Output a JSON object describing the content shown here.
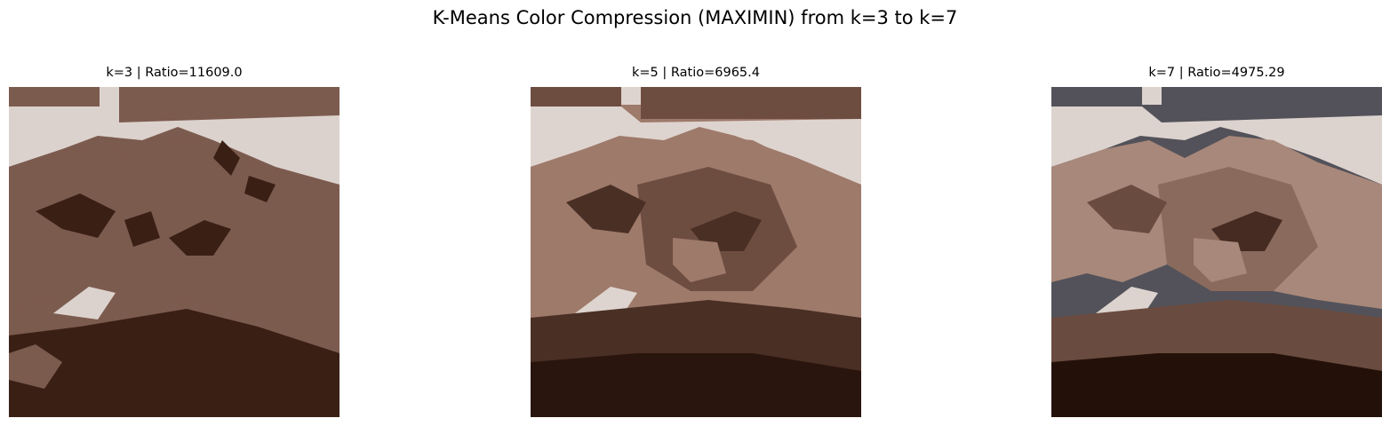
{
  "figure": {
    "title": "K-Means Color Compression (MAXIMIN) from k=3 to k=7"
  },
  "panels": [
    {
      "title": "k=3 | Ratio=11609.0",
      "k": 3,
      "palette": [
        "#dcd2cd",
        "#7c5b4f",
        "#3a1f15"
      ]
    },
    {
      "title": "k=5 | Ratio=6965.4",
      "k": 5,
      "palette": [
        "#ded4cf",
        "#9e7a6b",
        "#6e4d41",
        "#4a2f24",
        "#2a150e"
      ]
    },
    {
      "title": "k=7 | Ratio=4975.29",
      "k": 7,
      "palette": [
        "#ddd3ce",
        "#53525a",
        "#a8887a",
        "#8a6a5c",
        "#6a4b3f",
        "#452b21",
        "#231109"
      ]
    }
  ]
}
